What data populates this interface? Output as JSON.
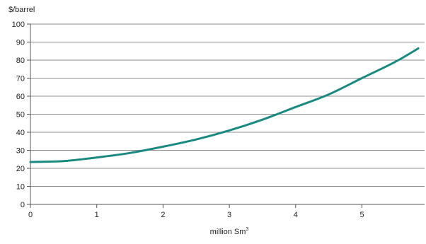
{
  "chart_data": {
    "type": "line",
    "title": "",
    "ylabel": "$/barrel",
    "xlabel": "million Sm",
    "xlabel_sup": "3",
    "xlim": [
      0,
      5.9
    ],
    "ylim": [
      0,
      100
    ],
    "x_ticks": [
      "0",
      "1",
      "2",
      "3",
      "4",
      "5"
    ],
    "y_ticks": [
      "0",
      "10",
      "20",
      "30",
      "40",
      "50",
      "60",
      "70",
      "80",
      "90",
      "100"
    ],
    "grid": {
      "horizontal": true,
      "vertical": false
    },
    "legend": "none",
    "series": [
      {
        "color": "#1a8a80",
        "x": [
          0,
          0.5,
          1,
          1.5,
          2,
          2.5,
          3,
          3.5,
          4,
          4.5,
          5,
          5.5,
          5.85
        ],
        "y": [
          23.5,
          24,
          26,
          28.5,
          32,
          36,
          41,
          47,
          54,
          61,
          70,
          79,
          86.5
        ]
      }
    ]
  }
}
